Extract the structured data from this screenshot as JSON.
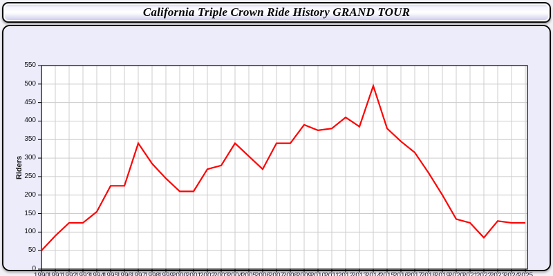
{
  "window": {
    "title": "California Triple Crown Ride History GRAND TOUR"
  },
  "chart_data": {
    "type": "line",
    "title": "California Triple Crown Ride History GRAND TOUR",
    "xlabel": "",
    "ylabel": "Riders",
    "x": [
      1990,
      1991,
      1992,
      1993,
      1994,
      1995,
      1996,
      1997,
      1998,
      1999,
      2000,
      2001,
      2002,
      2003,
      2004,
      2005,
      2006,
      2007,
      2008,
      2009,
      2010,
      2011,
      2012,
      2013,
      2014,
      2015,
      2016,
      2017,
      2018,
      2019,
      2020,
      2021,
      2022,
      2023,
      2024,
      2025
    ],
    "series": [
      {
        "name": "Riders",
        "color": "#ff0000",
        "values": [
          50,
          90,
          125,
          125,
          155,
          225,
          225,
          340,
          285,
          245,
          210,
          210,
          270,
          280,
          340,
          305,
          270,
          340,
          340,
          390,
          375,
          380,
          410,
          385,
          495,
          380,
          345,
          315,
          260,
          200,
          135,
          125,
          85,
          130,
          125,
          125
        ]
      }
    ],
    "ylim": [
      0,
      550
    ],
    "ytick_step": 50,
    "grid": true,
    "legend": "none",
    "plot_bg": "#ffffff",
    "grid_color": "#cccccc",
    "axis_color": "#000000"
  },
  "colors": {
    "panel_bg": "#ececfa",
    "page_bg": "#f1f1f6",
    "border": "#0a0a0a",
    "line": "#ff0000"
  }
}
